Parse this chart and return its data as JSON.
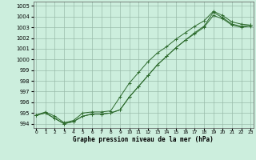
{
  "title": "Graphe pression niveau de la mer (hPa)",
  "bg_color": "#cceedd",
  "grid_color": "#99bbaa",
  "line_color": "#2d6a2d",
  "xlim": [
    -0.3,
    23.3
  ],
  "ylim": [
    993.6,
    1005.4
  ],
  "yticks": [
    994,
    995,
    996,
    997,
    998,
    999,
    1000,
    1001,
    1002,
    1003,
    1004,
    1005
  ],
  "xticks": [
    0,
    1,
    2,
    3,
    4,
    5,
    6,
    7,
    8,
    9,
    10,
    11,
    12,
    13,
    14,
    15,
    16,
    17,
    18,
    19,
    20,
    21,
    22,
    23
  ],
  "line1": [
    994.8,
    995.1,
    994.7,
    994.1,
    994.3,
    995.0,
    995.1,
    995.1,
    995.2,
    996.5,
    997.8,
    998.8,
    999.8,
    1000.6,
    1001.2,
    1001.9,
    1002.5,
    1003.1,
    1003.6,
    1004.5,
    1004.1,
    1003.5,
    1003.3,
    1003.2
  ],
  "line2": [
    994.8,
    995.0,
    994.5,
    994.0,
    994.2,
    994.7,
    994.9,
    994.9,
    995.0,
    995.3,
    996.5,
    997.5,
    998.5,
    999.5,
    1000.3,
    1001.1,
    1001.8,
    1002.4,
    1003.0,
    1004.1,
    1003.8,
    1003.2,
    1003.0,
    1003.1
  ],
  "line3": [
    994.8,
    995.0,
    994.5,
    994.0,
    994.2,
    994.7,
    994.9,
    994.9,
    995.0,
    995.3,
    996.5,
    997.5,
    998.5,
    999.5,
    1000.3,
    1001.1,
    1001.8,
    1002.5,
    1003.1,
    1004.4,
    1003.9,
    1003.3,
    1003.1,
    1003.2
  ]
}
